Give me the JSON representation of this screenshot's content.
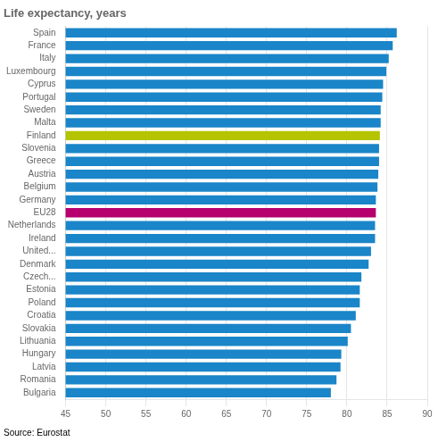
{
  "chart_data": {
    "type": "bar",
    "orientation": "horizontal",
    "title": "Life expectancy, years",
    "annotations": [
      "Source: Eurostat"
    ],
    "categories": [
      "Spain",
      "France",
      "Italy",
      "Luxembourg",
      "Cyprus",
      "Portugal",
      "Sweden",
      "Malta",
      "Finland",
      "Slovenia",
      "Greece",
      "Austria",
      "Belgium",
      "Germany",
      "EU28",
      "Netherlands",
      "Ireland",
      "United...",
      "Denmark",
      "Czech...",
      "Estonia",
      "Poland",
      "Croatia",
      "Slovakia",
      "Lithuania",
      "Hungary",
      "Latvia",
      "Romania",
      "Bulgaria"
    ],
    "values": [
      86.2,
      85.7,
      85.2,
      84.9,
      84.5,
      84.4,
      84.2,
      84.2,
      84.1,
      84.0,
      84.0,
      83.9,
      83.8,
      83.6,
      83.6,
      83.5,
      83.5,
      83.0,
      82.7,
      81.8,
      81.6,
      81.6,
      81.1,
      80.5,
      80.1,
      79.3,
      79.2,
      78.7,
      78.0
    ],
    "colors": [
      "#1a85c8",
      "#1a85c8",
      "#1a85c8",
      "#1a85c8",
      "#1a85c8",
      "#1a85c8",
      "#1a85c8",
      "#1a85c8",
      "#b5c400",
      "#1a85c8",
      "#1a85c8",
      "#1a85c8",
      "#1a85c8",
      "#1a85c8",
      "#b5006e",
      "#1a85c8",
      "#1a85c8",
      "#1a85c8",
      "#1a85c8",
      "#1a85c8",
      "#1a85c8",
      "#1a85c8",
      "#1a85c8",
      "#1a85c8",
      "#1a85c8",
      "#1a85c8",
      "#1a85c8",
      "#1a85c8",
      "#1a85c8"
    ],
    "xlim": [
      45,
      90
    ],
    "xticks": [
      45,
      50,
      55,
      60,
      65,
      70,
      75,
      80,
      85,
      90
    ],
    "grid": true
  }
}
